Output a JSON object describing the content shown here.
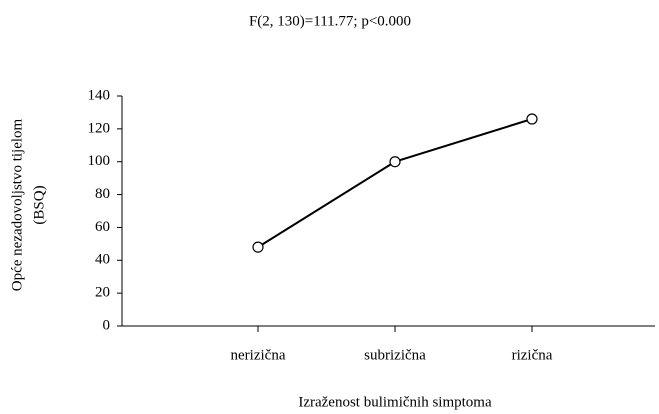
{
  "chart_data": {
    "type": "line",
    "title": "F(2, 130)=111.77; p<0.000",
    "xlabel": "Izraženost bulimičnih simptoma",
    "ylabel": [
      "Opće nezadovoljstvo tijelom",
      "(BSQ)"
    ],
    "categories": [
      "nerizična",
      "subrizična",
      "rizična"
    ],
    "values": [
      48,
      100,
      126
    ],
    "color": "#000000",
    "ylim": [
      0,
      140
    ],
    "yticks": [
      0,
      20,
      40,
      60,
      80,
      100,
      120,
      140
    ],
    "grid": false
  }
}
